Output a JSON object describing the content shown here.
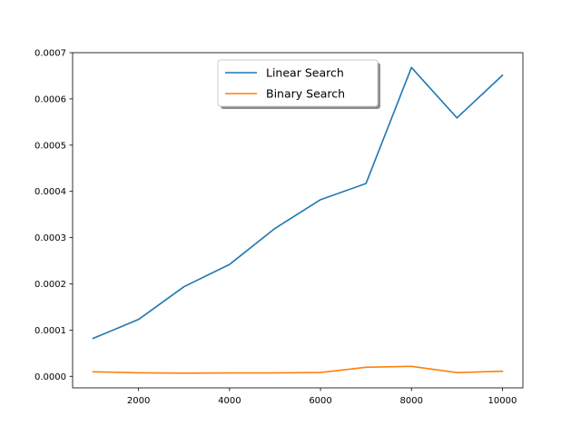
{
  "chart_data": {
    "type": "line",
    "title": "",
    "xlabel": "",
    "ylabel": "",
    "x": [
      1000,
      2000,
      3000,
      4000,
      5000,
      6000,
      7000,
      8000,
      9000,
      10000
    ],
    "xlim": [
      550,
      10450
    ],
    "ylim": [
      -2.5e-05,
      0.0007
    ],
    "xticks": [
      2000,
      4000,
      6000,
      8000,
      10000
    ],
    "xtick_labels": [
      "2000",
      "4000",
      "6000",
      "8000",
      "10000"
    ],
    "yticks": [
      0,
      0.0001,
      0.0002,
      0.0003,
      0.0004,
      0.0005,
      0.0006,
      0.0007
    ],
    "ytick_labels": [
      "0.0000",
      "0.0001",
      "0.0002",
      "0.0003",
      "0.0004",
      "0.0005",
      "0.0006",
      "0.0007"
    ],
    "grid": false,
    "legend_position": "top-center",
    "series": [
      {
        "name": "Linear Search",
        "color": "#1f77b4",
        "values": [
          8.2e-05,
          0.000123,
          0.000194,
          0.000242,
          0.00032,
          0.000382,
          0.000417,
          0.000668,
          0.000559,
          0.000651
        ]
      },
      {
        "name": "Binary Search",
        "color": "#ff7f0e",
        "values": [
          9.8e-06,
          7.5e-06,
          6.8e-06,
          7.2e-06,
          7.2e-06,
          8.2e-06,
          1.95e-05,
          2.15e-05,
          8e-06,
          1.1e-05
        ]
      }
    ]
  }
}
